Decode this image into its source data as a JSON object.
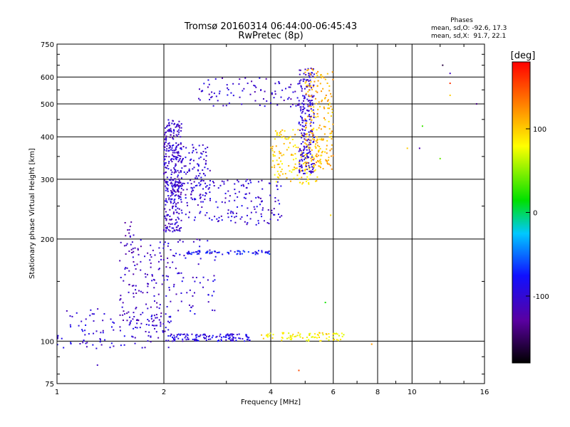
{
  "chart_data": {
    "type": "scatter",
    "title": "Tromsø 20160314 06:44:00-06:45:43",
    "subtitle": "RwPretec (8p)",
    "xlabel": "Frequency [MHz]",
    "ylabel": "Stationary phase Virtual Height [km]",
    "x_scale": "log",
    "y_scale": "log",
    "xlim": [
      1,
      16
    ],
    "ylim": [
      75,
      750
    ],
    "x_ticks": [
      1,
      2,
      4,
      6,
      8,
      10,
      16
    ],
    "y_ticks": [
      75,
      100,
      200,
      300,
      400,
      500,
      600,
      750
    ],
    "grid": true,
    "stats_box": {
      "title": "Phases",
      "line1": "mean, sd,O: -92.6, 17.3",
      "line2": "mean, sd,X:  91.7, 22.1"
    },
    "colorbar": {
      "label": "[deg]",
      "min": -180,
      "max": 180,
      "ticks": [
        100,
        0,
        -100
      ],
      "tick_labels": [
        "100",
        "0",
        "-100"
      ]
    },
    "traces": [
      {
        "x_range": [
          1.0,
          2.1
        ],
        "h_range": [
          95,
          125
        ],
        "phase": -100,
        "n": 120
      },
      {
        "x_range": [
          1.5,
          2.0
        ],
        "h_range": [
          110,
          200
        ],
        "phase": -110,
        "n": 120
      },
      {
        "x_range": [
          1.55,
          1.65
        ],
        "h_range": [
          180,
          230
        ],
        "phase": -110,
        "n": 15
      },
      {
        "x_range": [
          2.0,
          2.25
        ],
        "h_range": [
          210,
          450
        ],
        "phase": -105,
        "n": 320
      },
      {
        "x_range": [
          2.1,
          2.7
        ],
        "h_range": [
          260,
          380
        ],
        "phase": -100,
        "n": 120
      },
      {
        "x_range": [
          2.05,
          3.5
        ],
        "h_range": [
          100,
          105
        ],
        "phase": -95,
        "n": 120
      },
      {
        "x_range": [
          3.7,
          6.5
        ],
        "h_range": [
          100,
          106
        ],
        "phase": 85,
        "n": 80
      },
      {
        "x_range": [
          2.3,
          4.3
        ],
        "h_range": [
          220,
          300
        ],
        "phase": -100,
        "n": 160
      },
      {
        "x_range": [
          4.0,
          5.6
        ],
        "h_range": [
          290,
          420
        ],
        "phase": 95,
        "n": 160
      },
      {
        "x_range": [
          4.8,
          5.3
        ],
        "h_range": [
          310,
          640
        ],
        "phase": -100,
        "n": 220
      },
      {
        "x_range": [
          5.0,
          6.0
        ],
        "h_range": [
          320,
          640
        ],
        "phase": 110,
        "n": 180
      },
      {
        "x_range": [
          2.5,
          5.1
        ],
        "h_range": [
          490,
          600
        ],
        "phase": -105,
        "n": 90
      },
      {
        "x_range": [
          2.3,
          4.0
        ],
        "h_range": [
          180,
          185
        ],
        "phase": -80,
        "n": 70
      },
      {
        "x_range": [
          2.0,
          2.8
        ],
        "h_range": [
          120,
          200
        ],
        "phase": -100,
        "n": 80
      }
    ],
    "sparse_points": [
      {
        "x": 12.2,
        "h": 650,
        "phase": -160
      },
      {
        "x": 12.8,
        "h": 615,
        "phase": -110
      },
      {
        "x": 12.8,
        "h": 575,
        "phase": 160
      },
      {
        "x": 12.8,
        "h": 530,
        "phase": 100
      },
      {
        "x": 10.7,
        "h": 430,
        "phase": 30
      },
      {
        "x": 10.5,
        "h": 370,
        "phase": -120
      },
      {
        "x": 12.0,
        "h": 345,
        "phase": 40
      },
      {
        "x": 15.2,
        "h": 500,
        "phase": -140
      },
      {
        "x": 9.7,
        "h": 370,
        "phase": 100
      },
      {
        "x": 5.9,
        "h": 235,
        "phase": 95
      },
      {
        "x": 5.7,
        "h": 130,
        "phase": 20
      },
      {
        "x": 4.8,
        "h": 82,
        "phase": 150
      },
      {
        "x": 1.3,
        "h": 85,
        "phase": -110
      },
      {
        "x": 7.7,
        "h": 98,
        "phase": 120
      }
    ]
  }
}
